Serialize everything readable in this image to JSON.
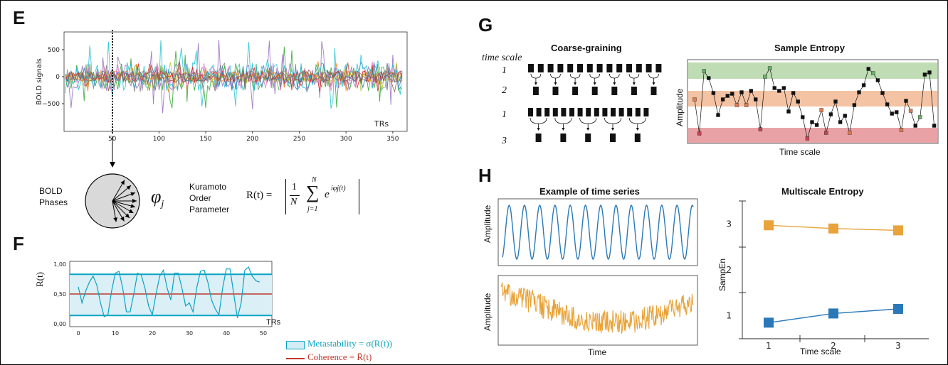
{
  "panels": {
    "E": "E",
    "F": "F",
    "G": "G",
    "H": "H"
  },
  "panelE": {
    "ylabel": "BOLD signals",
    "xlabel": "TRs",
    "yticks": [
      "500",
      "0",
      "−500"
    ],
    "xticks": [
      "50",
      "100",
      "150",
      "200",
      "250",
      "300",
      "350"
    ],
    "bold_phases_line1": "BOLD",
    "bold_phases_line2": "Phases",
    "phi_label": "φ",
    "phi_sub": "j",
    "kuramoto_line1": "Kuramoto",
    "kuramoto_line2": "Order",
    "kuramoto_line3": "Parameter",
    "formula_lhs": "R(t) =",
    "formula_one": "1",
    "formula_N": "N",
    "formula_sum": "∑",
    "formula_sum_top": "N",
    "formula_sum_bottom": "j=1",
    "formula_e": "e",
    "formula_exp": "iφj(t)"
  },
  "panelF": {
    "ylabel": "R(t)",
    "xlabel": "TRs",
    "yticks": [
      "1,00",
      "0,50",
      "0,00"
    ],
    "xticks": [
      "0",
      "10",
      "20",
      "30",
      "40",
      "50"
    ],
    "legend_meta": "Metastability = σ(R(t))",
    "legend_coh": "Coherence = R̄(t)"
  },
  "panelG": {
    "time_scale": "time scale",
    "scale_labels": [
      "1",
      "2",
      "1",
      "3"
    ],
    "coarse_title": "Coarse-graining",
    "sample_title": "Sample Entropy",
    "ylabel": "Amplitude",
    "xlabel": "Time scale"
  },
  "panelH": {
    "example_title": "Example of time series",
    "ylabel1": "Amplitude",
    "ylabel2": "Amplitude",
    "xlabel": "Time",
    "mse_title": "Multiscale Entropy",
    "mse_ylabel": "SampEn",
    "mse_xlabel": "Time scale",
    "mse_yticks": [
      "3",
      "2",
      "1"
    ],
    "mse_xticks": [
      "1",
      "2",
      "3"
    ]
  },
  "colors": {
    "teal": "#0aa3c2",
    "red": "#c0392b",
    "orange": "#e8a33a",
    "blue": "#2a78b8",
    "green_band": "#bfdcb5",
    "orange_band": "#f3c3a4",
    "red_band": "#e8a2a6"
  },
  "chart_data": [
    {
      "type": "line",
      "id": "kuramoto_R",
      "x": [
        0,
        1,
        2,
        3,
        4,
        5,
        6,
        7,
        8,
        9,
        10,
        11,
        12,
        13,
        14,
        15,
        16,
        17,
        18,
        19,
        20,
        21,
        22,
        23,
        24,
        25,
        26,
        27,
        28,
        29,
        30,
        31,
        32,
        33,
        34,
        35,
        36,
        37,
        38,
        39,
        40,
        41,
        42,
        43,
        44,
        45,
        46,
        47,
        48,
        49
      ],
      "values": [
        0.62,
        0.35,
        0.55,
        0.7,
        0.8,
        0.65,
        0.35,
        0.12,
        0.15,
        0.55,
        0.85,
        0.88,
        0.6,
        0.2,
        0.2,
        0.5,
        0.85,
        0.82,
        0.6,
        0.3,
        0.15,
        0.5,
        0.8,
        0.9,
        0.6,
        0.4,
        0.85,
        0.85,
        0.6,
        0.3,
        0.35,
        0.2,
        0.6,
        0.88,
        0.9,
        0.7,
        0.4,
        0.25,
        0.15,
        0.6,
        0.92,
        0.92,
        0.5,
        0.1,
        0.35,
        0.9,
        0.95,
        0.8,
        0.72,
        0.7
      ],
      "ylim": [
        0,
        1
      ],
      "xlim": [
        0,
        50
      ],
      "metastability_band": [
        0.14,
        0.83
      ],
      "coherence": 0.5
    },
    {
      "type": "line",
      "id": "multiscale_entropy",
      "categories": [
        "1",
        "2",
        "3"
      ],
      "series": [
        {
          "values": [
            2.97,
            2.9,
            2.86
          ]
        },
        {
          "values": [
            0.85,
            1.05,
            1.15
          ]
        }
      ],
      "ylim": [
        0.5,
        3.5
      ]
    }
  ]
}
